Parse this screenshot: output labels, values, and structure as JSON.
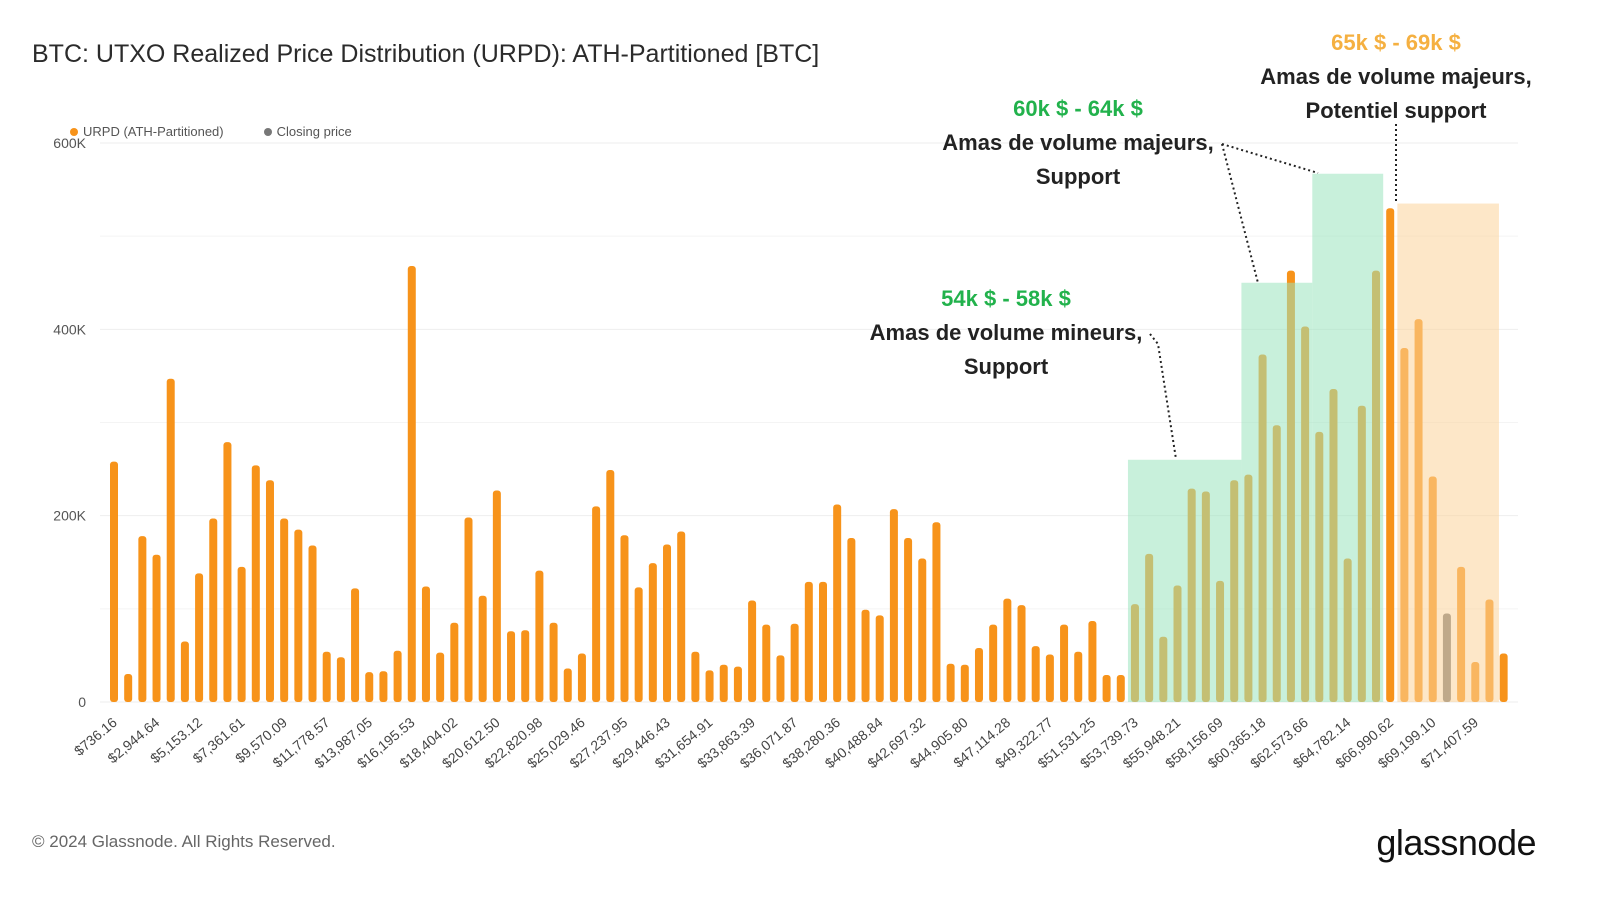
{
  "title": "BTC: UTXO Realized Price Distribution (URPD): ATH-Partitioned [BTC]",
  "legend": [
    {
      "label": "URPD (ATH-Partitioned)",
      "color": "#f7931a"
    },
    {
      "label": "Closing price",
      "color": "#777777"
    }
  ],
  "colors": {
    "bar": "#f7931a",
    "closing_bar": "#777777",
    "green_zone": "#c9efd9",
    "orange_zone": "#fde6c6",
    "green_text": "#22b24c",
    "orange_text": "#f5b041",
    "grid": "#eeeeee"
  },
  "annotations": [
    {
      "range": "54k $ - 58k $",
      "line1": "Amas de volume mineurs,",
      "line2": "Support",
      "color": "#22b24c"
    },
    {
      "range": "60k $ - 64k $",
      "line1": "Amas de volume majeurs,",
      "line2": "Support",
      "color": "#22b24c"
    },
    {
      "range": "65k $ - 69k $",
      "line1": "Amas de volume majeurs,",
      "line2": "Potentiel support",
      "color": "#f5b041"
    }
  ],
  "footer": "© 2024 Glassnode. All Rights Reserved.",
  "brand": "glassnode",
  "chart_data": {
    "type": "bar",
    "title": "BTC: UTXO Realized Price Distribution (URPD): ATH-Partitioned [BTC]",
    "xlabel": "",
    "ylabel": "",
    "ylim": [
      0,
      600000
    ],
    "yticks": [
      0,
      200000,
      400000,
      600000
    ],
    "ytick_labels": [
      "0",
      "200K",
      "400K",
      "600K"
    ],
    "xtick_labels": [
      "$736.16",
      "$2,944.64",
      "$5,153.12",
      "$7,361.61",
      "$9,570.09",
      "$11,778.57",
      "$13,987.05",
      "$16,195.53",
      "$18,404.02",
      "$20,612.50",
      "$22,820.98",
      "$25,029.46",
      "$27,237.95",
      "$29,446.43",
      "$31,654.91",
      "$33,863.39",
      "$36,071.87",
      "$38,280.36",
      "$40,488.84",
      "$42,697.32",
      "$44,905.80",
      "$47,114.28",
      "$49,322.77",
      "$51,531.25",
      "$53,739.73",
      "$55,948.21",
      "$58,156.69",
      "$60,365.18",
      "$62,573.66",
      "$64,782.14",
      "$66,990.62",
      "$69,199.10",
      "$71,407.59"
    ],
    "bin_width": 736.16,
    "series": [
      {
        "name": "URPD (ATH-Partitioned)",
        "values": [
          258000,
          30000,
          178000,
          158000,
          347000,
          65000,
          138000,
          197000,
          279000,
          145000,
          254000,
          238000,
          197000,
          185000,
          168000,
          54000,
          48000,
          122000,
          32000,
          33000,
          55000,
          468000,
          124000,
          53000,
          85000,
          198000,
          114000,
          227000,
          76000,
          77000,
          141000,
          85000,
          36000,
          52000,
          210000,
          249000,
          179000,
          123000,
          149000,
          169000,
          183000,
          54000,
          34000,
          40000,
          38000,
          109000,
          83000,
          50000,
          84000,
          129000,
          129000,
          212000,
          176000,
          99000,
          93000,
          207000,
          176000,
          154000,
          193000,
          41000,
          40000,
          58000,
          83000,
          111000,
          104000,
          60000,
          51000,
          83000,
          54000,
          87000,
          29000,
          29000,
          105000,
          159000,
          70000,
          125000,
          229000,
          226000,
          130000,
          238000,
          244000,
          373000,
          297000,
          463000,
          403000,
          290000,
          336000,
          154000,
          318000,
          463000,
          530000,
          380000,
          411000,
          242000,
          0,
          145000,
          43000,
          110000,
          52000
        ]
      },
      {
        "name": "Closing price",
        "values": [
          0,
          0,
          0,
          0,
          0,
          0,
          0,
          0,
          0,
          0,
          0,
          0,
          0,
          0,
          0,
          0,
          0,
          0,
          0,
          0,
          0,
          0,
          0,
          0,
          0,
          0,
          0,
          0,
          0,
          0,
          0,
          0,
          0,
          0,
          0,
          0,
          0,
          0,
          0,
          0,
          0,
          0,
          0,
          0,
          0,
          0,
          0,
          0,
          0,
          0,
          0,
          0,
          0,
          0,
          0,
          0,
          0,
          0,
          0,
          0,
          0,
          0,
          0,
          0,
          0,
          0,
          0,
          0,
          0,
          0,
          0,
          0,
          0,
          0,
          0,
          0,
          0,
          0,
          0,
          0,
          0,
          0,
          0,
          0,
          0,
          0,
          0,
          0,
          0,
          0,
          0,
          0,
          0,
          0,
          95000,
          0,
          0,
          0,
          0
        ]
      }
    ],
    "highlight_zones": [
      {
        "from": 53739.73,
        "to": 59630,
        "top": 260000,
        "color": "green"
      },
      {
        "from": 59630,
        "to": 63310,
        "top": 450000,
        "color": "green"
      },
      {
        "from": 63310,
        "to": 66990,
        "top": 567000,
        "color": "green"
      },
      {
        "from": 67725,
        "to": 73000,
        "top": 535000,
        "color": "orange"
      }
    ],
    "grid": true,
    "legend_position": "top-left"
  }
}
